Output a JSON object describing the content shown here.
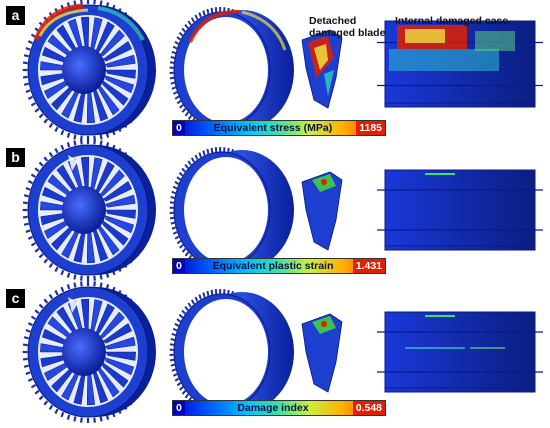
{
  "panels": [
    {
      "label": "a",
      "colorbar": {
        "min": "0",
        "title": "Equivalent stress (MPa)",
        "max": "1185"
      }
    },
    {
      "label": "b",
      "colorbar": {
        "min": "0",
        "title": "Equivalent plastic strain",
        "max": "1.431"
      }
    },
    {
      "label": "c",
      "colorbar": {
        "min": "0",
        "title": "Damage index",
        "max": "0.548"
      }
    }
  ],
  "captions": {
    "blade": "Detached damaged blade",
    "case": "Internal damaged case"
  },
  "colors": {
    "mesh_blue": "#1d3fd0",
    "dark_blue": "#0a1f9a",
    "hot_red": "#e02000",
    "hot_yellow": "#f0e040"
  }
}
